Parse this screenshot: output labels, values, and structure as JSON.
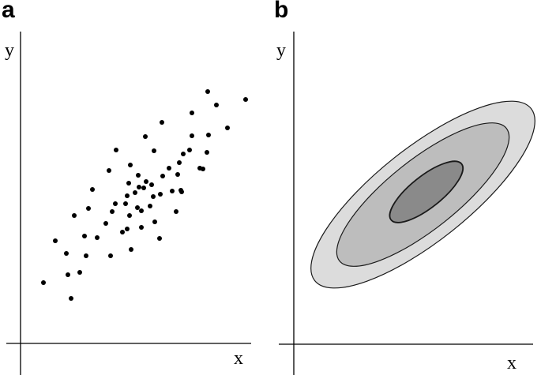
{
  "chart_data": [
    {
      "panel": "a",
      "type": "scatter",
      "xlabel": "x",
      "ylabel": "y",
      "axis_ticks": false,
      "points": [
        [
          55,
          358
        ],
        [
          70,
          305
        ],
        [
          84,
          321
        ],
        [
          86,
          348
        ],
        [
          90,
          378
        ],
        [
          94,
          273
        ],
        [
          101,
          345
        ],
        [
          107,
          299
        ],
        [
          109,
          324
        ],
        [
          112,
          264
        ],
        [
          117,
          240
        ],
        [
          123,
          301
        ],
        [
          134,
          283
        ],
        [
          138,
          216
        ],
        [
          140,
          324
        ],
        [
          142,
          268
        ],
        [
          146,
          258
        ],
        [
          147,
          190
        ],
        [
          155,
          294
        ],
        [
          159,
          258
        ],
        [
          161,
          290
        ],
        [
          161,
          248
        ],
        [
          163,
          232
        ],
        [
          164,
          273
        ],
        [
          165,
          209
        ],
        [
          166,
          316
        ],
        [
          171,
          244
        ],
        [
          174,
          263
        ],
        [
          175,
          222
        ],
        [
          176,
          237
        ],
        [
          179,
          288
        ],
        [
          179,
          267
        ],
        [
          182,
          238
        ],
        [
          184,
          173
        ],
        [
          185,
          230
        ],
        [
          190,
          261
        ],
        [
          192,
          234
        ],
        [
          194,
          249
        ],
        [
          195,
          191
        ],
        [
          196,
          281
        ],
        [
          202,
          302
        ],
        [
          203,
          246
        ],
        [
          205,
          155
        ],
        [
          206,
          223
        ],
        [
          214,
          213
        ],
        [
          218,
          242
        ],
        [
          223,
          268
        ],
        [
          225,
          221
        ],
        [
          227,
          206
        ],
        [
          229,
          241
        ],
        [
          230,
          243
        ],
        [
          232,
          195
        ],
        [
          240,
          190
        ],
        [
          243,
          172
        ],
        [
          243,
          143
        ],
        [
          253,
          213
        ],
        [
          257,
          214
        ],
        [
          262,
          193
        ],
        [
          264,
          171
        ],
        [
          263,
          116
        ],
        [
          274,
          133
        ],
        [
          288,
          162
        ],
        [
          311,
          126
        ]
      ]
    },
    {
      "panel": "b",
      "type": "contour",
      "xlabel": "x",
      "ylabel": "y",
      "axis_ticks": false,
      "levels": [
        {
          "name": "outer",
          "fill": "#dcdcdc"
        },
        {
          "name": "middle",
          "fill": "#bdbdbd"
        },
        {
          "name": "inner",
          "fill": "#8a8a8a"
        }
      ]
    }
  ],
  "labels": {
    "panel_a": "a",
    "panel_b": "b",
    "a_y": "y",
    "a_x": "x",
    "b_y": "y",
    "b_x": "x"
  },
  "colors": {
    "axis": "#000000",
    "point": "#000000",
    "outline": "#1a1a1a"
  }
}
